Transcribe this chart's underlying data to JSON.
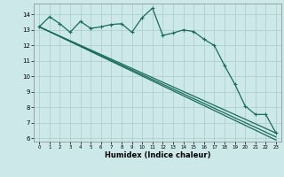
{
  "xlabel": "Humidex (Indice chaleur)",
  "background_color": "#cce8e8",
  "grid_color": "#aacccc",
  "line_color": "#1a6b5a",
  "xlim": [
    -0.5,
    23.5
  ],
  "ylim": [
    5.8,
    14.7
  ],
  "yticks": [
    6,
    7,
    8,
    9,
    10,
    11,
    12,
    13,
    14
  ],
  "xticks": [
    0,
    1,
    2,
    3,
    4,
    5,
    6,
    7,
    8,
    9,
    10,
    11,
    12,
    13,
    14,
    15,
    16,
    17,
    18,
    19,
    20,
    21,
    22,
    23
  ],
  "series1_y": [
    13.2,
    13.85,
    13.4,
    12.85,
    13.55,
    13.1,
    13.2,
    13.35,
    13.4,
    12.85,
    13.8,
    14.4,
    12.65,
    12.8,
    13.0,
    12.9,
    12.4,
    12.0,
    10.7,
    9.5,
    8.1,
    7.55,
    7.55,
    6.35
  ],
  "line2_x": [
    0,
    23
  ],
  "line2_y": [
    13.2,
    6.35
  ],
  "line3_x": [
    0,
    23
  ],
  "line3_y": [
    13.2,
    5.9
  ],
  "line4_x": [
    0,
    23
  ],
  "line4_y": [
    13.2,
    6.1
  ]
}
